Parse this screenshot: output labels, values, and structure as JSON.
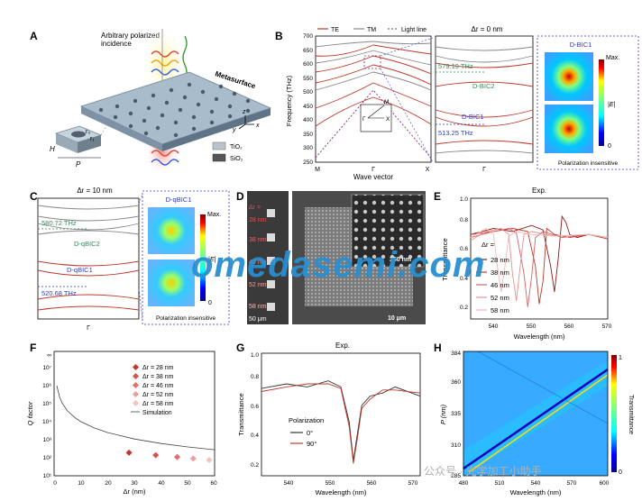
{
  "panels": {
    "A": {
      "letter": "A",
      "incidence_label_1": "Arbitrary polarized",
      "incidence_label_2": "incidence",
      "metasurface_label": "Metasurface",
      "r0_label": "r₀",
      "r1_label": "r₁",
      "h_label": "H",
      "p_label": "P",
      "legend_tio2": "TiO₂",
      "legend_sio2": "SiO₂",
      "axis_x": "x",
      "axis_y": "y",
      "axis_z": "z"
    },
    "B": {
      "letter": "B",
      "legend_te": "TE",
      "legend_tm": "TM",
      "legend_light": "Light line",
      "ylabel": "Frequency (THz)",
      "xlabel": "Wave vector",
      "xticks": [
        "M",
        "Γ",
        "X"
      ],
      "yticks": [
        "250",
        "300",
        "350",
        "400",
        "450",
        "500",
        "550",
        "600",
        "650",
        "700"
      ],
      "zoom_title": "Δr = 0 nm",
      "zoom_xtick": "Γ",
      "freq_1": "579.19 THz",
      "freq_2": "513.25 THz",
      "dbic2": "D-BIC2",
      "dbic1": "D-BIC1",
      "inset_M": "M",
      "inset_X": "X",
      "inset_G": "Γ",
      "field_title": "D-BIC1",
      "cbar_max": "Max.",
      "cbar_zero": "0",
      "cbar_label": "|E|",
      "pol_insensitive": "Polarization insensitive"
    },
    "C": {
      "letter": "C",
      "title": "Δr = 10 nm",
      "freq_1": "580.72 THz",
      "freq_2": "520.68 THz",
      "dqbic2": "D-qBIC2",
      "dqbic1": "D-qBIC1",
      "xtick": "Γ",
      "field_title": "D-qBIC1",
      "cbar_max": "Max.",
      "cbar_zero": "0",
      "cbar_label": "|E|",
      "pol_insensitive": "Polarization insensitive"
    },
    "D": {
      "letter": "D",
      "dr_header": "Δr =",
      "dr_values": [
        "28 nm",
        "38 nm",
        "46 nm",
        "52 nm",
        "58 nm"
      ],
      "scale_left": "50 μm",
      "scale_inset": "250 nm",
      "scale_main": "10 μm"
    },
    "E": {
      "letter": "E",
      "title": "Exp.",
      "ylabel": "Transmittance",
      "xlabel": "Wavelength (nm)",
      "yticks": [
        "0.2",
        "0.4",
        "0.6",
        "0.8",
        "1.0"
      ],
      "xticks": [
        "540",
        "550",
        "560",
        "570"
      ],
      "legend_header": "Δr =",
      "legend": [
        "28 nm",
        "38 nm",
        "46 nm",
        "52 nm",
        "58 nm"
      ]
    },
    "F": {
      "letter": "F",
      "ylabel": "Q factor",
      "xlabel": "Δr (nm)",
      "yticks": [
        "10¹",
        "10²",
        "10³",
        "10⁴",
        "10⁵",
        "10⁶",
        "10⁷",
        "∞"
      ],
      "xticks": [
        "0",
        "10",
        "20",
        "30",
        "40",
        "50",
        "60"
      ],
      "legend": [
        "Δr = 28 nm",
        "Δr = 38 nm",
        "Δr = 46 nm",
        "Δr = 52 nm",
        "Δr = 58 nm",
        "Simulation"
      ]
    },
    "G": {
      "letter": "G",
      "title": "Exp.",
      "ylabel": "Transmittance",
      "xlabel": "Wavelength (nm)",
      "yticks": [
        "0.2",
        "0.4",
        "0.6",
        "0.8",
        "1.0"
      ],
      "xticks": [
        "540",
        "550",
        "560",
        "570"
      ],
      "legend_header": "Polarization",
      "legend": [
        "0°",
        "90°"
      ]
    },
    "H": {
      "letter": "H",
      "ylabel": "P (nm)",
      "xlabel": "Wavelength (nm)",
      "yticks": [
        "285",
        "310",
        "335",
        "360",
        "384"
      ],
      "xticks": [
        "480",
        "510",
        "540",
        "570",
        "600"
      ],
      "cbar_max": "1",
      "cbar_min": "0",
      "cbar_label": "Transmittance"
    }
  },
  "watermark": "omedasemi.com",
  "watermark_small": "公众号 · 光学加工小助手",
  "chart_data": [
    {
      "panel": "E",
      "type": "line",
      "title": "Exp.",
      "xlabel": "Wavelength (nm)",
      "ylabel": "Transmittance",
      "xlim": [
        534,
        570
      ],
      "ylim": [
        0.2,
        1.0
      ],
      "series": [
        {
          "name": "28 nm",
          "color": "#8b1a1a",
          "x": [
            534,
            540,
            545,
            550,
            553,
            555,
            556,
            557,
            558,
            559,
            560,
            562,
            565,
            570
          ],
          "y": [
            0.76,
            0.8,
            0.78,
            0.82,
            0.79,
            0.55,
            0.38,
            0.6,
            0.88,
            0.84,
            0.76,
            0.74,
            0.76,
            0.74
          ]
        },
        {
          "name": "38 nm",
          "color": "#c0392b",
          "x": [
            534,
            540,
            545,
            549,
            551,
            552,
            553,
            554,
            556,
            560,
            565,
            570
          ],
          "y": [
            0.76,
            0.78,
            0.8,
            0.78,
            0.55,
            0.3,
            0.45,
            0.8,
            0.76,
            0.74,
            0.76,
            0.73
          ]
        },
        {
          "name": "46 nm",
          "color": "#d96060",
          "x": [
            534,
            540,
            544,
            546,
            548,
            549,
            550,
            551,
            553,
            558,
            565,
            570
          ],
          "y": [
            0.74,
            0.78,
            0.8,
            0.77,
            0.5,
            0.28,
            0.48,
            0.74,
            0.78,
            0.74,
            0.76,
            0.74
          ]
        },
        {
          "name": "52 nm",
          "color": "#e89090",
          "x": [
            534,
            538,
            542,
            544,
            545,
            546,
            547,
            548,
            550,
            556,
            565,
            570
          ],
          "y": [
            0.72,
            0.78,
            0.8,
            0.76,
            0.5,
            0.32,
            0.55,
            0.76,
            0.78,
            0.75,
            0.76,
            0.74
          ]
        },
        {
          "name": "58 nm",
          "color": "#f2b8b8",
          "x": [
            534,
            538,
            540,
            541,
            542,
            543,
            544,
            546,
            550,
            556,
            565,
            570
          ],
          "y": [
            0.74,
            0.8,
            0.76,
            0.55,
            0.38,
            0.55,
            0.75,
            0.78,
            0.76,
            0.75,
            0.76,
            0.74
          ]
        }
      ]
    },
    {
      "panel": "F",
      "type": "scatter",
      "xlabel": "Δr (nm)",
      "ylabel": "Q factor",
      "xlim": [
        0,
        60
      ],
      "ylog": true,
      "points": [
        {
          "name": "Δr = 28 nm",
          "x": 28,
          "y": 190,
          "color": "#c0392b"
        },
        {
          "name": "Δr = 38 nm",
          "x": 38,
          "y": 140,
          "color": "#d95050"
        },
        {
          "name": "Δr = 46 nm",
          "x": 46,
          "y": 110,
          "color": "#e07070"
        },
        {
          "name": "Δr = 52 nm",
          "x": 52,
          "y": 90,
          "color": "#eba0a0"
        },
        {
          "name": "Δr = 58 nm",
          "x": 58,
          "y": 75,
          "color": "#f2c4c4"
        }
      ],
      "simulation": {
        "name": "Simulation",
        "x": [
          1,
          2,
          3,
          5,
          8,
          10,
          15,
          20,
          30,
          40,
          50,
          60
        ],
        "y": [
          1000000,
          250000,
          110000,
          40000,
          16000,
          10000,
          4500,
          2500,
          1100,
          620,
          400,
          280
        ]
      }
    },
    {
      "panel": "G",
      "type": "line",
      "title": "Exp.",
      "xlabel": "Wavelength (nm)",
      "ylabel": "Transmittance",
      "xlim": [
        534,
        572
      ],
      "ylim": [
        0.2,
        1.0
      ],
      "series": [
        {
          "name": "0°",
          "color": "#333333",
          "x": [
            534,
            540,
            545,
            550,
            553,
            555,
            556,
            557,
            558,
            560,
            563,
            566,
            572
          ],
          "y": [
            0.77,
            0.8,
            0.78,
            0.82,
            0.78,
            0.55,
            0.3,
            0.48,
            0.66,
            0.72,
            0.74,
            0.78,
            0.72
          ]
        },
        {
          "name": "90°",
          "color": "#c0392b",
          "x": [
            534,
            540,
            545,
            550,
            553,
            555,
            556,
            557,
            558,
            560,
            563,
            566,
            572
          ],
          "y": [
            0.75,
            0.78,
            0.8,
            0.8,
            0.77,
            0.52,
            0.28,
            0.45,
            0.64,
            0.7,
            0.76,
            0.76,
            0.74
          ]
        }
      ]
    }
  ]
}
